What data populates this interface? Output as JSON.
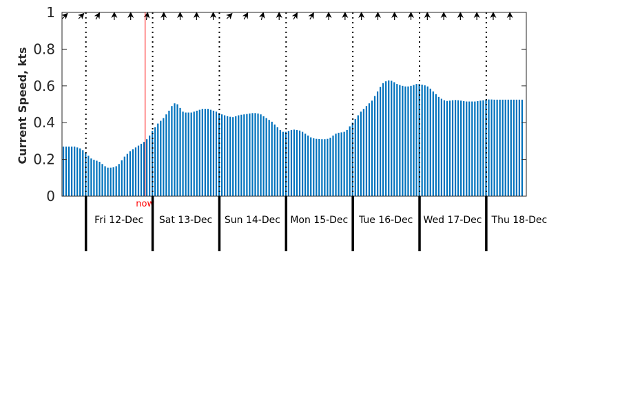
{
  "chart_data": {
    "type": "bar",
    "ylabel": "Current Speed, kts",
    "ylim": [
      0,
      1
    ],
    "yticks": [
      "0",
      "0.2",
      "0.4",
      "0.6",
      "0.8",
      "1"
    ],
    "ytick_values": [
      0,
      0.2,
      0.4,
      0.6,
      0.8,
      1
    ],
    "grid": false,
    "bar_color": "#0072bd",
    "now_color": "#ff0000",
    "now_label": "now",
    "now_hours": 21.3,
    "start_hours": -8.6,
    "end_hours": 158.4,
    "days": [
      {
        "label": "Fri 12-Dec",
        "start_hours": 0
      },
      {
        "label": "Sat 13-Dec",
        "start_hours": 24
      },
      {
        "label": "Sun 14-Dec",
        "start_hours": 48
      },
      {
        "label": "Mon 15-Dec",
        "start_hours": 72
      },
      {
        "label": "Tue 16-Dec",
        "start_hours": 96
      },
      {
        "label": "Wed 17-Dec",
        "start_hours": 120
      },
      {
        "label": "Thu 18-Dec",
        "start_hours": 144
      }
    ],
    "arrow_hours": [
      -7.5,
      -1.6,
      4.3,
      10.2,
      16.1,
      22.0,
      28.0,
      33.9,
      39.8,
      45.8,
      51.7,
      57.6,
      63.5,
      69.5,
      75.4,
      81.3,
      87.3,
      93.2,
      99.1,
      105.0,
      111.0,
      116.9,
      122.8,
      128.7,
      134.7,
      140.6,
      146.5,
      152.5
    ],
    "arrow_direction_deg": [
      45,
      45,
      30,
      0,
      0,
      10,
      0,
      0,
      0,
      0,
      45,
      30,
      15,
      0,
      30,
      30,
      0,
      0,
      0,
      0,
      0,
      0,
      0,
      0,
      0,
      0,
      0,
      0
    ],
    "bar_interval_hours": 1,
    "values": [
      0.27,
      0.27,
      0.27,
      0.27,
      0.27,
      0.265,
      0.26,
      0.25,
      0.235,
      0.22,
      0.205,
      0.198,
      0.193,
      0.187,
      0.175,
      0.163,
      0.155,
      0.155,
      0.157,
      0.163,
      0.175,
      0.195,
      0.215,
      0.23,
      0.245,
      0.255,
      0.265,
      0.275,
      0.285,
      0.295,
      0.31,
      0.33,
      0.355,
      0.375,
      0.395,
      0.41,
      0.425,
      0.445,
      0.465,
      0.49,
      0.505,
      0.5,
      0.48,
      0.46,
      0.455,
      0.455,
      0.455,
      0.46,
      0.465,
      0.47,
      0.475,
      0.475,
      0.475,
      0.47,
      0.465,
      0.46,
      0.452,
      0.445,
      0.44,
      0.435,
      0.432,
      0.43,
      0.435,
      0.44,
      0.443,
      0.445,
      0.447,
      0.45,
      0.452,
      0.452,
      0.45,
      0.445,
      0.435,
      0.425,
      0.415,
      0.405,
      0.39,
      0.375,
      0.36,
      0.35,
      0.35,
      0.355,
      0.36,
      0.362,
      0.36,
      0.357,
      0.35,
      0.34,
      0.33,
      0.32,
      0.315,
      0.312,
      0.311,
      0.31,
      0.31,
      0.312,
      0.318,
      0.33,
      0.34,
      0.345,
      0.347,
      0.35,
      0.36,
      0.38,
      0.4,
      0.42,
      0.44,
      0.46,
      0.475,
      0.49,
      0.505,
      0.52,
      0.545,
      0.57,
      0.595,
      0.615,
      0.625,
      0.63,
      0.628,
      0.62,
      0.61,
      0.605,
      0.6,
      0.597,
      0.597,
      0.6,
      0.605,
      0.61,
      0.61,
      0.607,
      0.603,
      0.597,
      0.585,
      0.57,
      0.555,
      0.54,
      0.53,
      0.522,
      0.518,
      0.52,
      0.522,
      0.523,
      0.522,
      0.52,
      0.517,
      0.515,
      0.515,
      0.515,
      0.515,
      0.517,
      0.52,
      0.522,
      0.525,
      0.526,
      0.526,
      0.525,
      0.525,
      0.525,
      0.525,
      0.525,
      0.525,
      0.525,
      0.525,
      0.525,
      0.525,
      0.525
    ]
  }
}
